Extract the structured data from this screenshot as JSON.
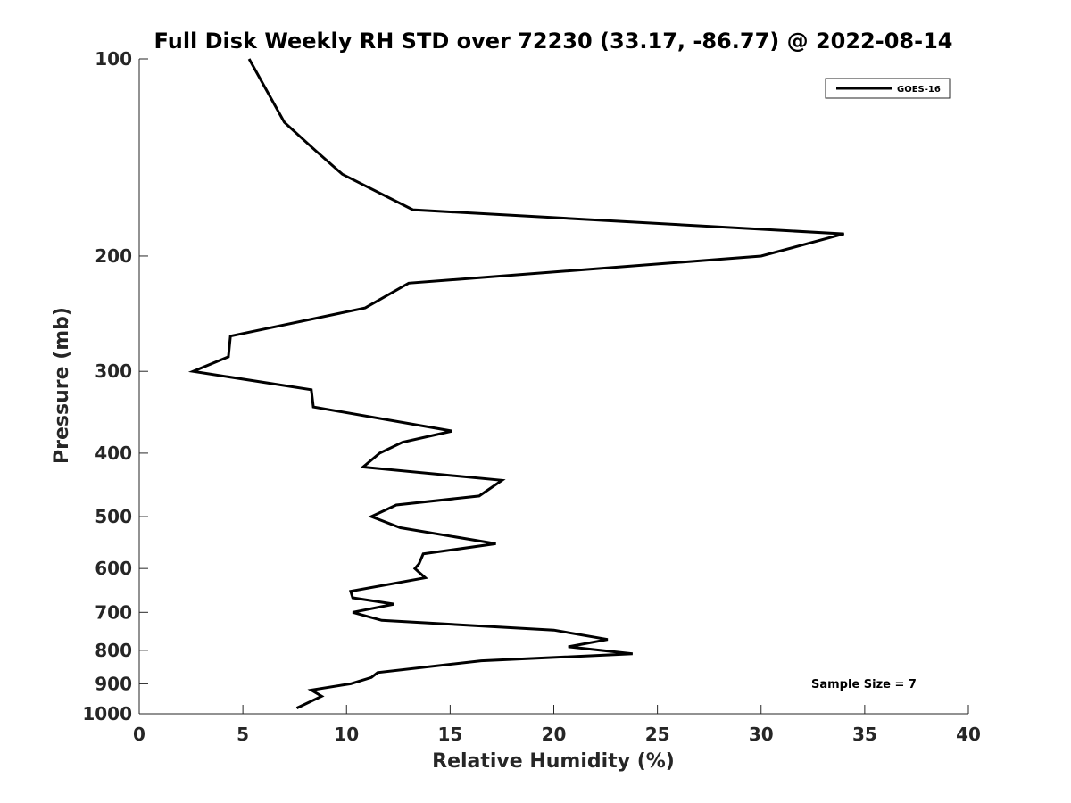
{
  "chart_data": {
    "type": "line",
    "title": "Full Disk Weekly RH STD over 72230 (33.17, -86.77) @ 2022-08-14",
    "xlabel": "Relative Humidity (%)",
    "ylabel": "Pressure (mb)",
    "xlim": [
      0,
      40
    ],
    "ylim": [
      100,
      1000
    ],
    "y_scale": "log",
    "y_reversed": true,
    "grid": false,
    "xticks": [
      0,
      5,
      10,
      15,
      20,
      25,
      30,
      35,
      40
    ],
    "yticks": [
      100,
      200,
      300,
      400,
      500,
      600,
      700,
      800,
      900,
      1000
    ],
    "legend": {
      "placement": "top-right",
      "entries": [
        "GOES-16"
      ]
    },
    "annotation": "Sample Size = 7",
    "series": [
      {
        "name": "GOES-16",
        "color": "#000000",
        "x": [
          5.3,
          7.0,
          8.5,
          9.8,
          13.2,
          34.0,
          30.0,
          13.0,
          10.9,
          4.4,
          4.3,
          2.6,
          8.3,
          8.4,
          15.1,
          12.7,
          11.6,
          10.8,
          17.5,
          16.4,
          12.4,
          11.2,
          12.6,
          17.2,
          13.7,
          13.5,
          13.3,
          13.8,
          10.2,
          10.3,
          12.3,
          10.3,
          11.7,
          20.0,
          22.6,
          20.7,
          23.8,
          16.5,
          11.5,
          11.2,
          10.2,
          8.3,
          8.8,
          7.6
        ],
        "y": [
          100,
          125,
          138,
          150,
          170,
          185,
          200,
          220,
          240,
          265,
          285,
          300,
          320,
          340,
          370,
          385,
          400,
          420,
          440,
          465,
          480,
          500,
          520,
          550,
          570,
          590,
          600,
          620,
          650,
          665,
          680,
          700,
          720,
          745,
          770,
          790,
          810,
          830,
          865,
          880,
          900,
          920,
          940,
          980
        ]
      }
    ]
  }
}
